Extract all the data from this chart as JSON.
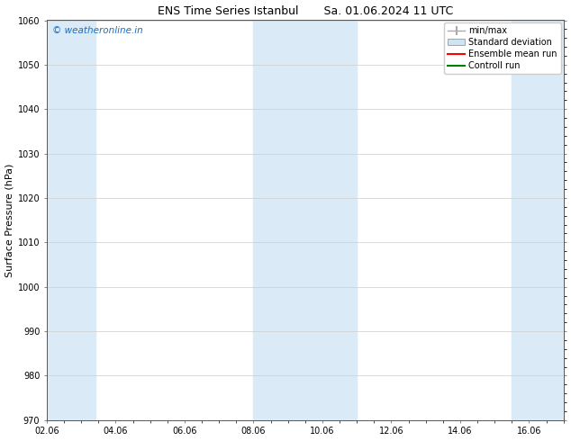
{
  "title_left": "ENS Time Series Istanbul",
  "title_right": "Sa. 01.06.2024 11 UTC",
  "ylabel": "Surface Pressure (hPa)",
  "ylim": [
    970,
    1060
  ],
  "yticks": [
    970,
    980,
    990,
    1000,
    1010,
    1020,
    1030,
    1040,
    1050,
    1060
  ],
  "xlim": [
    0,
    15
  ],
  "xtick_labels": [
    "02.06",
    "04.06",
    "06.06",
    "08.06",
    "10.06",
    "12.06",
    "14.06",
    "16.06"
  ],
  "xtick_positions": [
    0,
    2,
    4,
    6,
    8,
    10,
    12,
    14
  ],
  "bg_color": "#ffffff",
  "plot_bg_color": "#ffffff",
  "shaded_band_color": "#daeaf6",
  "shaded_bands": [
    {
      "x_start": 0.0,
      "x_end": 1.4
    },
    {
      "x_start": 6.0,
      "x_end": 9.0
    },
    {
      "x_start": 13.5,
      "x_end": 15.0
    }
  ],
  "watermark_text": "© weatheronline.in",
  "watermark_color": "#1a6fc4",
  "watermark_fontsize": 7.5,
  "legend_items": [
    {
      "label": "min/max",
      "color": "#aaaaaa",
      "type": "errorbar"
    },
    {
      "label": "Standard deviation",
      "color": "#cde4f5",
      "type": "box"
    },
    {
      "label": "Ensemble mean run",
      "color": "#ff0000",
      "type": "line"
    },
    {
      "label": "Controll run",
      "color": "#008000",
      "type": "line"
    }
  ],
  "tick_label_fontsize": 7,
  "axis_label_fontsize": 8,
  "title_fontsize": 9,
  "legend_fontsize": 7,
  "grid_color": "#cccccc",
  "spine_color": "#555555"
}
